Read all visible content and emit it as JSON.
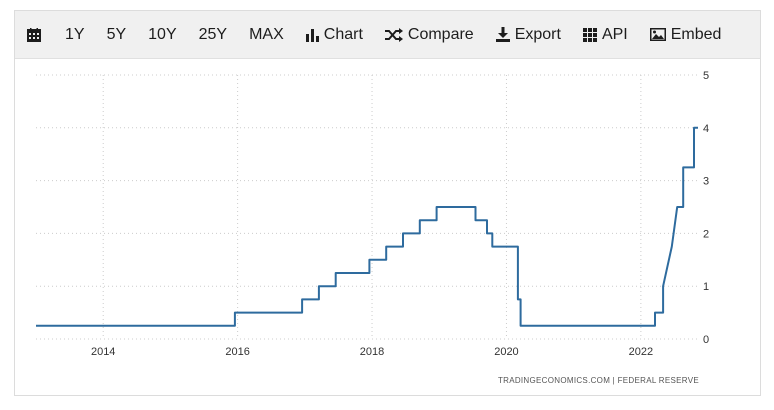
{
  "toolbar": {
    "items": [
      {
        "id": "calendar",
        "label": "",
        "icon": "calendar-icon"
      },
      {
        "id": "1y",
        "label": "1Y"
      },
      {
        "id": "5y",
        "label": "5Y"
      },
      {
        "id": "10y",
        "label": "10Y"
      },
      {
        "id": "25y",
        "label": "25Y"
      },
      {
        "id": "max",
        "label": "MAX"
      },
      {
        "id": "chart",
        "label": "Chart",
        "icon": "bar-chart-icon"
      },
      {
        "id": "compare",
        "label": "Compare",
        "icon": "shuffle-icon"
      },
      {
        "id": "export",
        "label": "Export",
        "icon": "download-icon"
      },
      {
        "id": "api",
        "label": "API",
        "icon": "grid-icon"
      },
      {
        "id": "embed",
        "label": "Embed",
        "icon": "image-icon"
      }
    ]
  },
  "source_text": "TRADINGECONOMICS.COM  |  FEDERAL RESERVE",
  "colors": {
    "line": "#2e6b9e",
    "grid": "#cccccc"
  },
  "chart_data": {
    "type": "line",
    "x_ticks": [
      "2014",
      "2016",
      "2018",
      "2020",
      "2022"
    ],
    "y_ticks": [
      "0",
      "1",
      "2",
      "3",
      "4",
      "5"
    ],
    "xlim": [
      2013.0,
      2022.85
    ],
    "ylim": [
      0,
      5
    ],
    "series": [
      {
        "values": [
          [
            2013.0,
            0.25
          ],
          [
            2015.96,
            0.25
          ],
          [
            2015.96,
            0.5
          ],
          [
            2016.96,
            0.5
          ],
          [
            2016.96,
            0.75
          ],
          [
            2017.21,
            0.75
          ],
          [
            2017.21,
            1.0
          ],
          [
            2017.46,
            1.0
          ],
          [
            2017.46,
            1.25
          ],
          [
            2017.96,
            1.25
          ],
          [
            2017.96,
            1.5
          ],
          [
            2018.21,
            1.5
          ],
          [
            2018.21,
            1.75
          ],
          [
            2018.46,
            1.75
          ],
          [
            2018.46,
            2.0
          ],
          [
            2018.71,
            2.0
          ],
          [
            2018.71,
            2.25
          ],
          [
            2018.96,
            2.25
          ],
          [
            2018.96,
            2.5
          ],
          [
            2019.54,
            2.5
          ],
          [
            2019.54,
            2.25
          ],
          [
            2019.71,
            2.25
          ],
          [
            2019.71,
            2.0
          ],
          [
            2019.79,
            2.0
          ],
          [
            2019.79,
            1.75
          ],
          [
            2020.17,
            1.75
          ],
          [
            2020.17,
            0.75
          ],
          [
            2020.21,
            0.75
          ],
          [
            2020.21,
            0.25
          ],
          [
            2022.21,
            0.25
          ],
          [
            2022.21,
            0.5
          ],
          [
            2022.33,
            0.5
          ],
          [
            2022.33,
            1.0
          ],
          [
            2022.46,
            1.75
          ],
          [
            2022.54,
            2.5
          ],
          [
            2022.63,
            2.5
          ],
          [
            2022.63,
            3.25
          ],
          [
            2022.79,
            3.25
          ],
          [
            2022.79,
            4.0
          ],
          [
            2022.85,
            4.0
          ]
        ]
      }
    ]
  }
}
